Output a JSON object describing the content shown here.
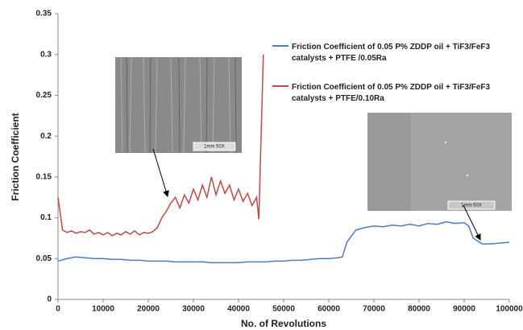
{
  "chart_data": {
    "type": "line",
    "xlabel": "No. of Revolutions",
    "ylabel": "Friction Coefficient",
    "xlim": [
      0,
      100000
    ],
    "xticks": [
      0,
      10000,
      20000,
      30000,
      40000,
      50000,
      60000,
      70000,
      80000,
      90000,
      100000
    ],
    "ylim": [
      0,
      0.35
    ],
    "yticks": [
      0,
      0.05,
      0.1,
      0.15,
      0.2,
      0.25,
      0.3,
      0.35
    ],
    "series": [
      {
        "name": "Friction Coefficient of 0.05  P% ZDDP  oil + TiF3/FeF3 catalysts + PTFE /0.05Ra",
        "color": "#4a7ebb",
        "x": [
          0,
          2000,
          4000,
          6000,
          8000,
          10000,
          12000,
          14000,
          16000,
          18000,
          20000,
          22000,
          24000,
          26000,
          28000,
          30000,
          32000,
          34000,
          36000,
          38000,
          40000,
          42000,
          44000,
          46000,
          48000,
          50000,
          52000,
          54000,
          56000,
          58000,
          60000,
          62000,
          63000,
          64000,
          66000,
          68000,
          70000,
          72000,
          74000,
          76000,
          78000,
          80000,
          82000,
          84000,
          86000,
          88000,
          90000,
          91000,
          92000,
          94000,
          96000,
          98000,
          100000
        ],
        "values": [
          0.047,
          0.05,
          0.052,
          0.051,
          0.05,
          0.05,
          0.049,
          0.049,
          0.048,
          0.048,
          0.047,
          0.047,
          0.047,
          0.046,
          0.046,
          0.046,
          0.046,
          0.045,
          0.045,
          0.045,
          0.045,
          0.046,
          0.046,
          0.046,
          0.047,
          0.047,
          0.048,
          0.048,
          0.049,
          0.05,
          0.05,
          0.051,
          0.052,
          0.07,
          0.085,
          0.088,
          0.09,
          0.089,
          0.091,
          0.09,
          0.092,
          0.09,
          0.093,
          0.092,
          0.095,
          0.093,
          0.094,
          0.09,
          0.075,
          0.068,
          0.068,
          0.069,
          0.07
        ]
      },
      {
        "name": "Friction Coefficient of 0.05  P% ZDDP  oil + TiF3/FeF3 catalysts + PTFE/0.10Ra",
        "color": "#be4b48",
        "x": [
          0,
          1000,
          2000,
          3000,
          4000,
          5000,
          6000,
          7000,
          8000,
          9000,
          10000,
          11000,
          12000,
          13000,
          14000,
          15000,
          16000,
          17000,
          18000,
          19000,
          20000,
          21000,
          22000,
          23000,
          24000,
          25000,
          26000,
          27000,
          28000,
          29000,
          30000,
          31000,
          32000,
          33000,
          34000,
          35000,
          36000,
          37000,
          38000,
          39000,
          40000,
          41000,
          42000,
          43000,
          44000,
          44500,
          45000,
          45500
        ],
        "values": [
          0.125,
          0.085,
          0.082,
          0.084,
          0.081,
          0.083,
          0.082,
          0.085,
          0.08,
          0.082,
          0.079,
          0.082,
          0.078,
          0.081,
          0.079,
          0.083,
          0.08,
          0.084,
          0.079,
          0.082,
          0.081,
          0.083,
          0.088,
          0.1,
          0.108,
          0.118,
          0.125,
          0.112,
          0.128,
          0.118,
          0.135,
          0.122,
          0.14,
          0.125,
          0.15,
          0.128,
          0.145,
          0.13,
          0.14,
          0.122,
          0.135,
          0.12,
          0.13,
          0.115,
          0.125,
          0.098,
          0.2,
          0.3
        ]
      }
    ],
    "insets": [
      {
        "scale_label": "1mm 50X"
      },
      {
        "scale_label": "1mm 50X"
      }
    ]
  }
}
